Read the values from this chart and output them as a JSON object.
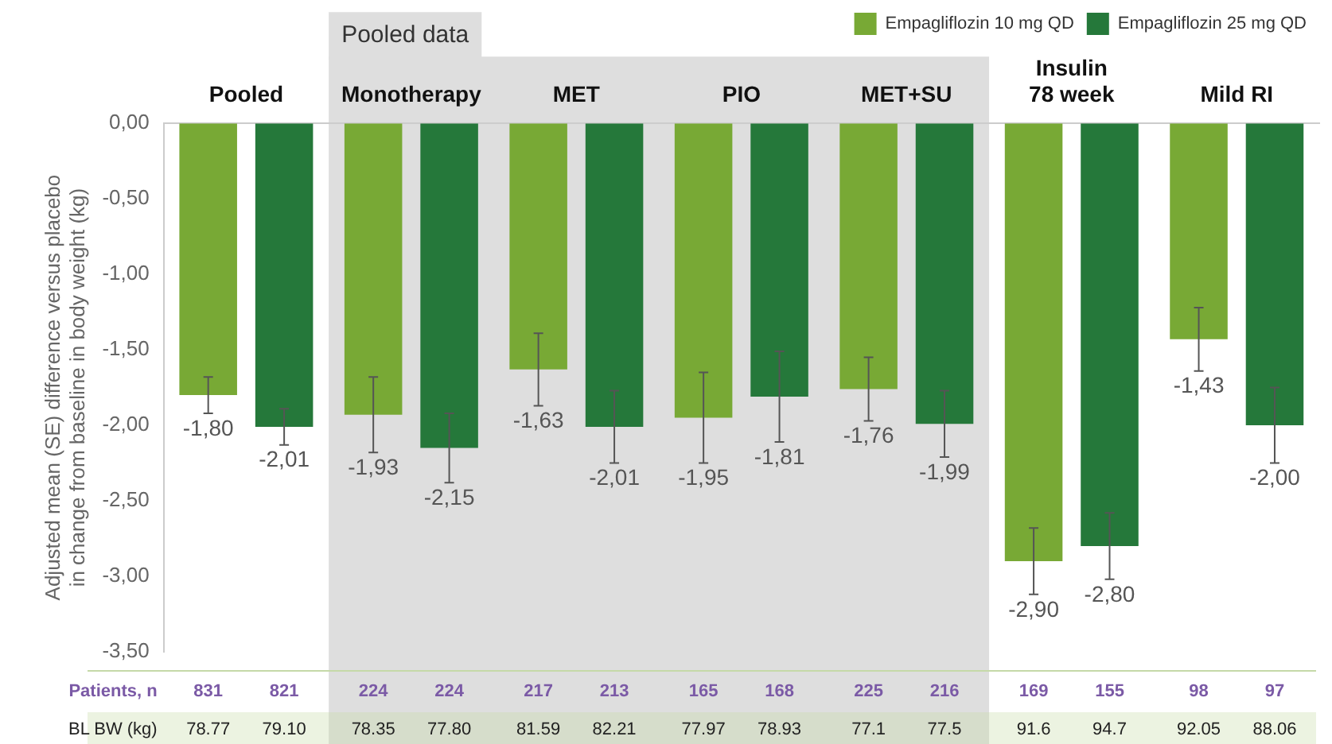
{
  "chart_data": {
    "type": "bar",
    "ylabel": "Adjusted mean (SE) difference versus placebo in change from baseline in body weight (kg)",
    "categories": [
      "Pooled",
      "Monotherapy",
      "MET",
      "PIO",
      "MET+SU",
      "Insulin 78 week",
      "Mild RI"
    ],
    "series": [
      {
        "name": "Empagliflozin 10 mg QD",
        "color": "#78a935",
        "values": [
          -1.8,
          -1.93,
          -1.63,
          -1.95,
          -1.76,
          -2.9,
          -1.43
        ],
        "errors": [
          0.12,
          0.25,
          0.24,
          0.3,
          0.21,
          0.22,
          0.21
        ],
        "value_labels": [
          "-1,80",
          "-1,93",
          "-1,63",
          "-1,95",
          "-1,76",
          "-2,90",
          "-1,43"
        ]
      },
      {
        "name": "Empagliflozin 25 mg QD",
        "color": "#25783a",
        "values": [
          -2.01,
          -2.15,
          -2.01,
          -1.81,
          -1.99,
          -2.8,
          -2.0
        ],
        "errors": [
          0.12,
          0.23,
          0.24,
          0.3,
          0.22,
          0.22,
          0.25
        ],
        "value_labels": [
          "-2,01",
          "-2,15",
          "-2,01",
          "-1,81",
          "-1,99",
          "-2,80",
          "-2,00"
        ]
      }
    ],
    "ylim": [
      -3.5,
      0
    ],
    "yticks": [
      {
        "value": 0,
        "label": "0,00"
      },
      {
        "value": -0.5,
        "label": "-0,50"
      },
      {
        "value": -1,
        "label": "-1,00"
      },
      {
        "value": -1.5,
        "label": "-1,50"
      },
      {
        "value": -2,
        "label": "-2,00"
      },
      {
        "value": -2.5,
        "label": "-2,50"
      },
      {
        "value": -3,
        "label": "-3,00"
      },
      {
        "value": -3.5,
        "label": "-3,50"
      }
    ],
    "bands": [
      {
        "axis": "x",
        "from": "Monotherapy",
        "to": "MET+SU",
        "label": "Pooled data",
        "color": "#dedede"
      }
    ],
    "annotations": [
      "Patients, n",
      "831",
      "821",
      "224",
      "224",
      "217",
      "213",
      "165",
      "168",
      "225",
      "216",
      "169",
      "155",
      "98",
      "97",
      "BL BW (kg)",
      "78.77",
      "79.10",
      "78.35",
      "77.80",
      "81.59",
      "82.21",
      "77.97",
      "78.93",
      "77.1",
      "77.5",
      "91.6",
      "94.7",
      "92.05",
      "88.06"
    ],
    "grid": false,
    "legend": "top right"
  }
}
